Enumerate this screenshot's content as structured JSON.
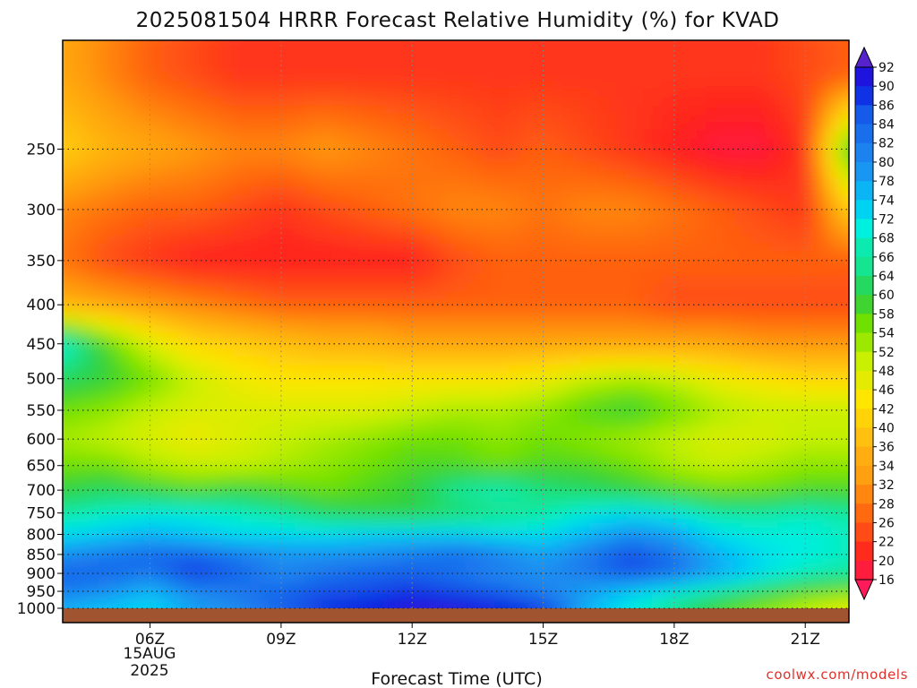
{
  "chart_data": {
    "type": "heatmap",
    "title": "2025081504 HRRR Forecast Relative Humidity (%) for KVAD",
    "xlabel": "Forecast Time (UTC)",
    "ylabel": "",
    "credit": "coolwx.com/models",
    "x_ticks": [
      "06Z",
      "09Z",
      "12Z",
      "15Z",
      "18Z",
      "21Z"
    ],
    "x_date_lines": [
      "15AUG",
      "2025"
    ],
    "x_range_hours": [
      4,
      22
    ],
    "y_axis": "pressure (hPa), inverted",
    "y_ticks": [
      250,
      300,
      350,
      400,
      450,
      500,
      550,
      600,
      650,
      700,
      750,
      800,
      850,
      900,
      950,
      1000
    ],
    "y_range": [
      1000,
      180
    ],
    "grid": true,
    "colorbar_ticks": [
      92,
      90,
      86,
      84,
      82,
      80,
      78,
      74,
      72,
      68,
      66,
      64,
      60,
      58,
      54,
      52,
      48,
      46,
      42,
      40,
      36,
      34,
      32,
      28,
      26,
      22,
      20,
      16
    ],
    "color_scale": [
      [
        16,
        "#ff1a5a"
      ],
      [
        20,
        "#ff2020"
      ],
      [
        26,
        "#ff6010"
      ],
      [
        32,
        "#ff9a10"
      ],
      [
        38,
        "#ffc010"
      ],
      [
        44,
        "#ffe600"
      ],
      [
        50,
        "#c8f000"
      ],
      [
        56,
        "#70e000"
      ],
      [
        60,
        "#30d040"
      ],
      [
        66,
        "#10e8a0"
      ],
      [
        70,
        "#00f0e0"
      ],
      [
        74,
        "#00c8f8"
      ],
      [
        80,
        "#1e8cf0"
      ],
      [
        86,
        "#1450e8"
      ],
      [
        90,
        "#0a14e0"
      ],
      [
        94,
        "#5a14d8"
      ]
    ],
    "colorbar_top_color": "#5522cc",
    "colorbar_bottom_color": "#ff1a5a",
    "ground_color": "#a05530",
    "profiles_note": "rows: pressure levels (hPa); columns: forecast hours 4Z..22Z; values RH %",
    "levels": [
      1000,
      950,
      900,
      850,
      800,
      750,
      700,
      650,
      600,
      550,
      500,
      450,
      400,
      350,
      300,
      250,
      200
    ],
    "hours": [
      4,
      5,
      6,
      7,
      8,
      9,
      10,
      11,
      12,
      13,
      14,
      15,
      16,
      17,
      18,
      19,
      20,
      21,
      22
    ],
    "rh": [
      [
        76,
        74,
        72,
        78,
        80,
        84,
        88,
        90,
        92,
        92,
        90,
        88,
        76,
        70,
        64,
        58,
        54,
        50,
        46
      ],
      [
        82,
        80,
        76,
        80,
        82,
        84,
        86,
        86,
        88,
        86,
        84,
        80,
        78,
        74,
        70,
        66,
        62,
        58,
        56
      ],
      [
        84,
        84,
        82,
        88,
        84,
        80,
        82,
        84,
        84,
        82,
        80,
        80,
        82,
        86,
        84,
        78,
        72,
        68,
        66
      ],
      [
        80,
        82,
        84,
        84,
        82,
        80,
        80,
        80,
        82,
        84,
        82,
        78,
        82,
        86,
        82,
        76,
        72,
        70,
        68
      ],
      [
        72,
        74,
        76,
        74,
        72,
        72,
        72,
        74,
        74,
        74,
        72,
        72,
        76,
        80,
        78,
        72,
        70,
        70,
        68
      ],
      [
        66,
        68,
        70,
        70,
        68,
        66,
        62,
        60,
        60,
        62,
        64,
        66,
        70,
        72,
        70,
        66,
        66,
        68,
        66
      ],
      [
        60,
        62,
        60,
        58,
        60,
        58,
        56,
        58,
        60,
        66,
        68,
        64,
        62,
        60,
        58,
        56,
        56,
        58,
        58
      ],
      [
        56,
        56,
        52,
        50,
        50,
        52,
        54,
        56,
        58,
        58,
        56,
        58,
        58,
        56,
        52,
        50,
        52,
        54,
        54
      ],
      [
        52,
        50,
        48,
        46,
        48,
        50,
        52,
        54,
        56,
        56,
        54,
        56,
        54,
        52,
        50,
        48,
        48,
        50,
        50
      ],
      [
        56,
        54,
        50,
        48,
        48,
        48,
        48,
        48,
        50,
        52,
        52,
        54,
        58,
        60,
        56,
        52,
        50,
        50,
        50
      ],
      [
        62,
        60,
        56,
        50,
        46,
        44,
        44,
        44,
        44,
        44,
        44,
        46,
        50,
        52,
        50,
        46,
        44,
        42,
        42
      ],
      [
        70,
        58,
        48,
        42,
        40,
        38,
        36,
        36,
        34,
        34,
        34,
        34,
        34,
        34,
        34,
        34,
        32,
        32,
        32
      ],
      [
        36,
        34,
        32,
        30,
        28,
        26,
        26,
        26,
        26,
        26,
        26,
        26,
        26,
        26,
        24,
        24,
        24,
        24,
        24
      ],
      [
        28,
        24,
        22,
        20,
        20,
        20,
        20,
        20,
        20,
        24,
        26,
        26,
        26,
        26,
        26,
        26,
        26,
        26,
        26
      ],
      [
        30,
        28,
        26,
        26,
        24,
        22,
        24,
        26,
        28,
        30,
        30,
        28,
        30,
        30,
        28,
        26,
        24,
        22,
        40
      ],
      [
        40,
        36,
        34,
        32,
        30,
        30,
        32,
        30,
        28,
        26,
        24,
        26,
        24,
        22,
        20,
        18,
        18,
        22,
        60
      ],
      [
        34,
        30,
        26,
        24,
        22,
        22,
        22,
        22,
        22,
        22,
        22,
        22,
        22,
        22,
        22,
        22,
        22,
        24,
        26
      ]
    ]
  }
}
